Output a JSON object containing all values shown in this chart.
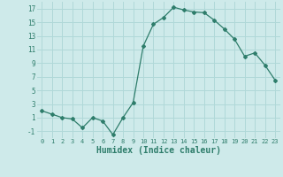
{
  "x": [
    0,
    1,
    2,
    3,
    4,
    5,
    6,
    7,
    8,
    9,
    10,
    11,
    12,
    13,
    14,
    15,
    16,
    17,
    18,
    19,
    20,
    21,
    22,
    23
  ],
  "y": [
    2,
    1.5,
    1,
    0.8,
    -0.5,
    1,
    0.5,
    -1.5,
    1,
    3.2,
    11.5,
    14.7,
    15.7,
    17.2,
    16.8,
    16.5,
    16.4,
    15.3,
    14.0,
    12.5,
    10.0,
    10.5,
    8.7,
    6.5
  ],
  "line_color": "#2e7d6b",
  "marker": "D",
  "markersize": 2.0,
  "linewidth": 0.9,
  "xlabel": "Humidex (Indice chaleur)",
  "xlabel_fontsize": 7,
  "bg_color": "#ceeaea",
  "grid_color": "#b0d8d8",
  "tick_color": "#2e7d6b",
  "ylim": [
    -2,
    18
  ],
  "xlim": [
    -0.5,
    23.5
  ],
  "yticks": [
    -1,
    1,
    3,
    5,
    7,
    9,
    11,
    13,
    15,
    17
  ],
  "xticks": [
    0,
    1,
    2,
    3,
    4,
    5,
    6,
    7,
    8,
    9,
    10,
    11,
    12,
    13,
    14,
    15,
    16,
    17,
    18,
    19,
    20,
    21,
    22,
    23
  ]
}
